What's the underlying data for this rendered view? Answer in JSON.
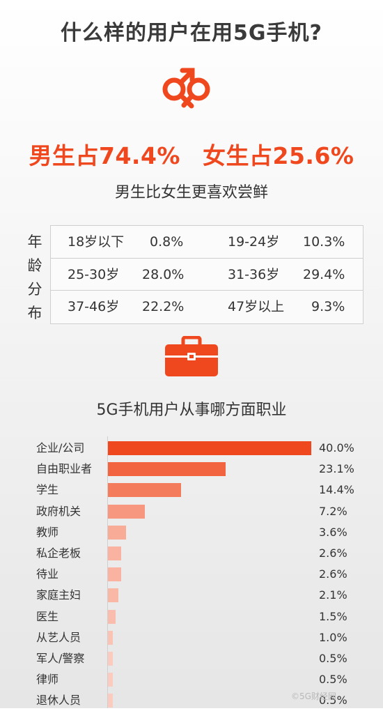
{
  "title": "什么样的用户在用5G手机?",
  "gender": {
    "male": "男生占74.4%",
    "female": "女生占25.6%",
    "subtitle": "男生比女生更喜欢尝鲜"
  },
  "age": {
    "label": [
      "年",
      "龄",
      "分",
      "布"
    ],
    "rows": [
      [
        {
          "range": "18岁以下",
          "value": "0.8%"
        },
        {
          "range": "19-24岁",
          "value": "10.3%"
        }
      ],
      [
        {
          "range": "25-30岁",
          "value": "28.0%"
        },
        {
          "range": "31-36岁",
          "value": "29.4%"
        }
      ],
      [
        {
          "range": "37-46岁",
          "value": "22.2%"
        },
        {
          "range": "47岁以上",
          "value": "9.3%"
        }
      ]
    ]
  },
  "occupation_title": "5G手机用户从事哪方面职业",
  "watermark": "©5G财经网",
  "chart_data": {
    "type": "bar",
    "orientation": "horizontal",
    "title": "5G手机用户从事哪方面职业",
    "categories": [
      "企业/公司",
      "自由职业者",
      "学生",
      "政府机关",
      "教师",
      "私企老板",
      "待业",
      "家庭主妇",
      "医生",
      "从艺人员",
      "军人/警察",
      "律师",
      "退休人员"
    ],
    "values": [
      40.0,
      23.1,
      14.4,
      7.2,
      3.6,
      2.6,
      2.6,
      2.1,
      1.5,
      1.0,
      0.5,
      0.5,
      0.5
    ],
    "value_labels": [
      "40.0%",
      "23.1%",
      "14.4%",
      "7.2%",
      "3.6%",
      "2.6%",
      "2.6%",
      "2.1%",
      "1.5%",
      "1.0%",
      "0.5%",
      "0.5%",
      "0.5%"
    ],
    "xlim": [
      0,
      40
    ],
    "grid": false,
    "colors": {
      "accent": "#f0481e",
      "faint": "#fde2da"
    }
  }
}
